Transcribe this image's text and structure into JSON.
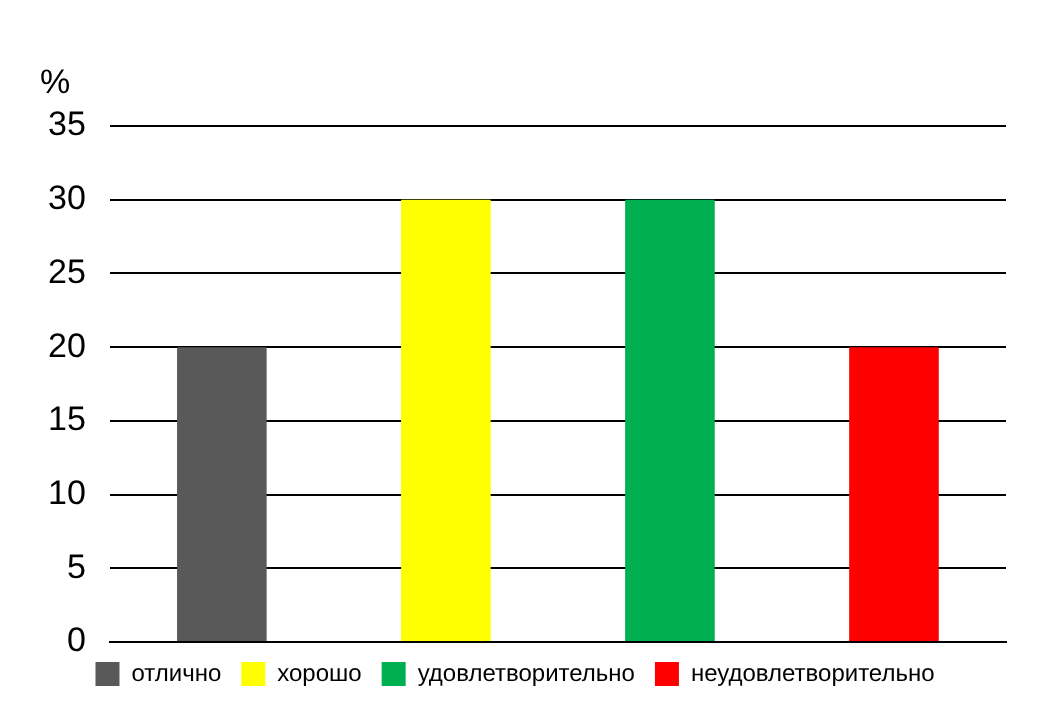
{
  "chart_data": {
    "type": "bar",
    "ylabel": "%",
    "categories": [
      null
    ],
    "series": [
      {
        "name": "отлично",
        "color": "#595959",
        "values": [
          20
        ]
      },
      {
        "name": "хорошо",
        "color": "#ffff00",
        "values": [
          30
        ]
      },
      {
        "name": "удовлетворительно",
        "color": "#00b050",
        "values": [
          30
        ]
      },
      {
        "name": "неудовлетворительно",
        "color": "#ff0000",
        "values": [
          20
        ]
      }
    ],
    "ylim": [
      0,
      35
    ],
    "yticks": [
      0,
      5,
      10,
      15,
      20,
      25,
      30,
      35
    ],
    "grid": "y",
    "legend": "bottom",
    "tick_labels": "y"
  }
}
